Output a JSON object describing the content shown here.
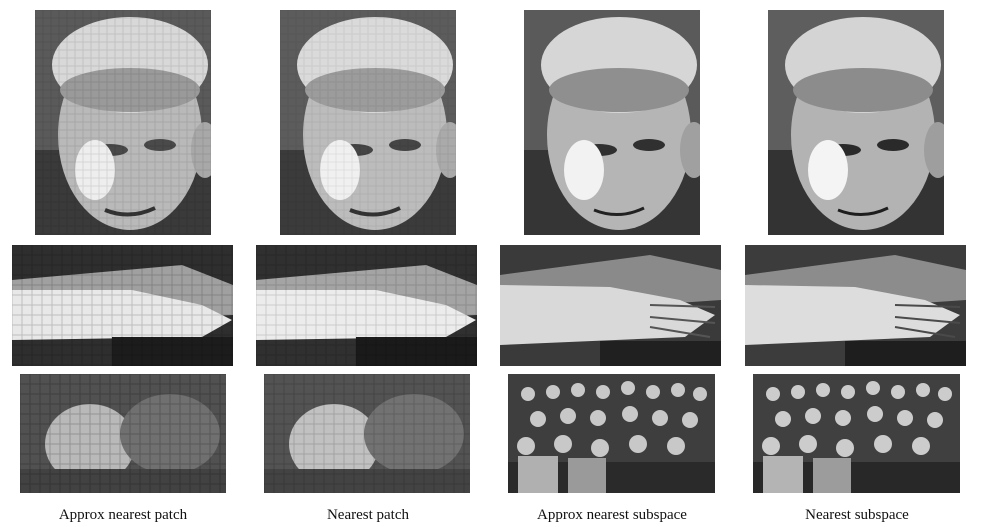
{
  "figure": {
    "captions": [
      "Approx nearest patch",
      "Nearest patch",
      "Approx nearest subspace",
      "Nearest subspace"
    ],
    "rows": [
      "face",
      "arm",
      "group"
    ]
  }
}
